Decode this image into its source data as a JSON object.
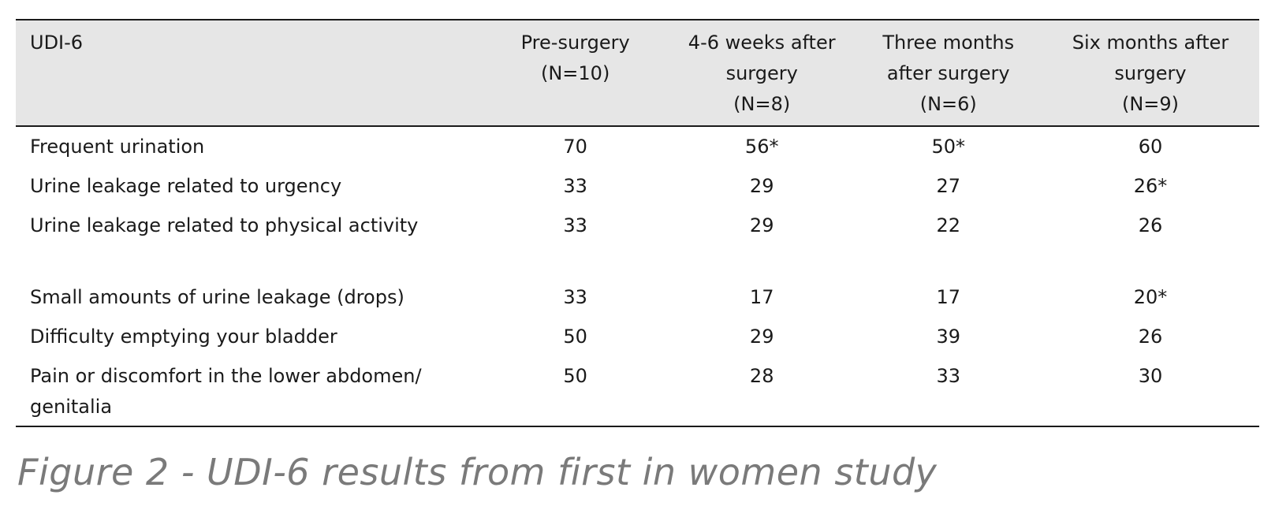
{
  "table": {
    "columns": [
      {
        "lines": [
          "UDI-6"
        ]
      },
      {
        "lines": [
          "Pre-surgery",
          "(N=10)"
        ]
      },
      {
        "lines": [
          "4-6 weeks after",
          "surgery",
          "(N=8)"
        ]
      },
      {
        "lines": [
          "Three months",
          "after surgery",
          "(N=6)"
        ]
      },
      {
        "lines": [
          "Six months after",
          "surgery",
          "(N=9)"
        ]
      }
    ],
    "rows": [
      {
        "label": "Frequent urination",
        "values": [
          "70",
          "56*",
          "50*",
          "60"
        ]
      },
      {
        "label": "Urine leakage related to urgency",
        "values": [
          "33",
          "29",
          "27",
          "26*"
        ]
      },
      {
        "label": "Urine leakage related to physical activity",
        "values": [
          "33",
          "29",
          "22",
          "26"
        ]
      },
      {
        "label": "Small amounts of urine leakage (drops)",
        "values": [
          "33",
          "17",
          "17",
          "20*"
        ]
      },
      {
        "label": "Difficulty emptying your bladder",
        "values": [
          "50",
          "29",
          "39",
          "26"
        ]
      },
      {
        "label": "Pain or discomfort in the lower abdomen/ genitalia",
        "values": [
          "50",
          "28",
          "33",
          "30"
        ]
      }
    ]
  },
  "caption": "Figure 2 - UDI-6 results from first in women study"
}
